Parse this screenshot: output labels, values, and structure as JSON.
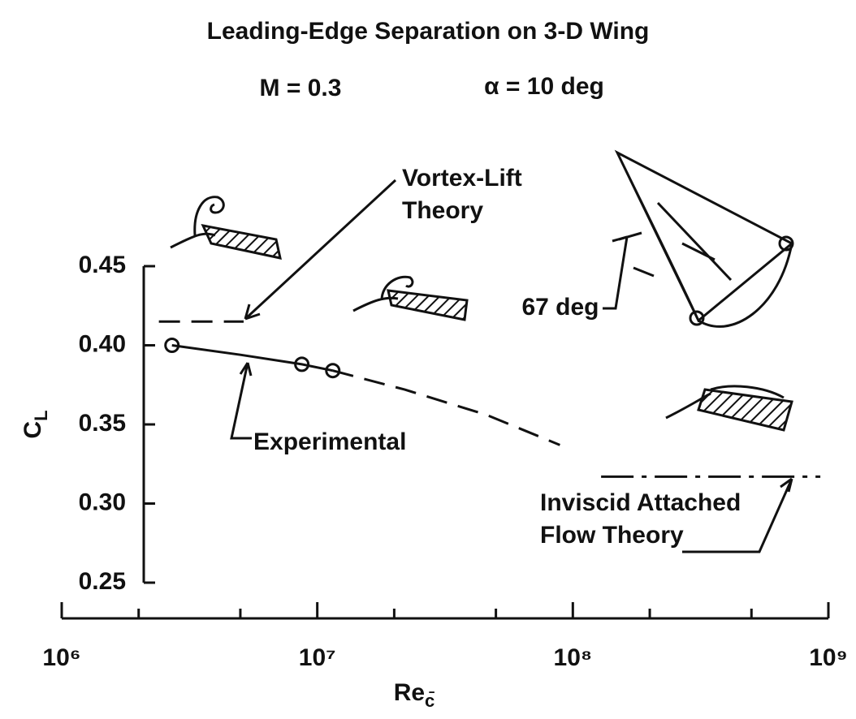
{
  "chart_data": {
    "type": "line",
    "title": "Leading-Edge Separation on 3-D Wing",
    "subtitle_left": "M = 0.3",
    "subtitle_right": "α = 10 deg",
    "xlabel": "Re",
    "xlabel_sub": "c̄",
    "ylabel": "C",
    "ylabel_sub": "L",
    "angle_note": "67 deg",
    "xscale": "log",
    "xlim": [
      1000000,
      1000000000
    ],
    "ylim": [
      0.25,
      0.45
    ],
    "xticks": [
      {
        "value": 1000000,
        "label": "10⁶"
      },
      {
        "value": 10000000,
        "label": "10⁷"
      },
      {
        "value": 100000000,
        "label": "10⁸"
      },
      {
        "value": 1000000000,
        "label": "10⁹"
      }
    ],
    "xminor_ticks": [
      2000000,
      5000000,
      20000000,
      50000000,
      200000000,
      500000000
    ],
    "yticks": [
      0.45,
      {
        "value": 0.4,
        "label": "0.40"
      },
      0.35,
      {
        "value": 0.3,
        "label": "0.30"
      },
      0.25
    ],
    "series": [
      {
        "name": "Experimental",
        "color": "#111111",
        "style": "markers",
        "x": [
          2700000,
          8700000,
          11500000
        ],
        "values": [
          0.4,
          0.388,
          0.384
        ]
      },
      {
        "color": "#111111",
        "style": "solid",
        "x": [
          2700000,
          5000000,
          8700000,
          11500000
        ],
        "values": [
          0.4,
          0.394,
          0.388,
          0.384
        ]
      },
      {
        "color": "#111111",
        "style": "dashed",
        "x": [
          11500000,
          22000000,
          46000000,
          89000000
        ],
        "values": [
          0.384,
          0.372,
          0.356,
          0.337
        ]
      },
      {
        "name": "Vortex-Lift Theory",
        "color": "#111111",
        "style": "dashed",
        "x": [
          2400000,
          5150000
        ],
        "values": [
          0.415,
          0.415
        ]
      },
      {
        "name": "Inviscid Attached Flow Theory",
        "color": "#111111",
        "style": "dashdot",
        "x": [
          129000000,
          930000000
        ],
        "values": [
          0.317,
          0.317
        ]
      }
    ]
  }
}
